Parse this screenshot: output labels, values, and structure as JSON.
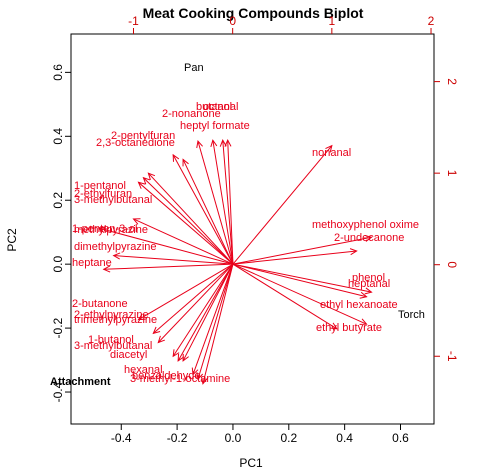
{
  "chart_data": {
    "type": "scatter",
    "title": "Meat Cooking Compounds Biplot",
    "xlabel": "PC1",
    "ylabel": "PC2",
    "xlim": [
      -0.58,
      0.72
    ],
    "ylim": [
      -0.5,
      0.72
    ],
    "top_axis_lim": [
      -1.63,
      2.03
    ],
    "right_axis_lim": [
      -1.74,
      2.52
    ],
    "x_ticks": [
      "-0.4",
      "-0.2",
      "0.0",
      "0.2",
      "0.4",
      "0.6"
    ],
    "y_ticks": [
      "-0.4",
      "-0.2",
      "0.0",
      "0.2",
      "0.4",
      "0.6"
    ],
    "top_ticks": [
      "-1",
      "0",
      "1",
      "2"
    ],
    "right_ticks": [
      "-1",
      "0",
      "1",
      "2"
    ],
    "observations": [
      {
        "label": "Pan",
        "x": -0.13,
        "y": 0.63
      },
      {
        "label": "Torch",
        "x": 0.61,
        "y": -0.21
      },
      {
        "label": "Attachment",
        "x": -0.46,
        "y": -0.43
      }
    ],
    "loadings": [
      {
        "label": "nonanal",
        "x": 1.0,
        "y": 1.3
      },
      {
        "label": "methoxyphenol oxime",
        "x": 1.4,
        "y": 0.3
      },
      {
        "label": "2-undecanone",
        "x": 1.25,
        "y": 0.15
      },
      {
        "label": "phenol",
        "x": 1.4,
        "y": -0.3
      },
      {
        "label": "heptanal",
        "x": 1.35,
        "y": -0.35
      },
      {
        "label": "ethyl hexanoate",
        "x": 1.35,
        "y": -0.65
      },
      {
        "label": "ethyl butyrate",
        "x": 1.05,
        "y": -0.7
      },
      {
        "label": "2-nonanone",
        "x": -0.35,
        "y": 1.35
      },
      {
        "label": "butanol",
        "x": -0.1,
        "y": 1.36
      },
      {
        "label": "octanal",
        "x": -0.05,
        "y": 1.36
      },
      {
        "label": "heptyl formate",
        "x": -0.2,
        "y": 1.36
      },
      {
        "label": "2-pentylfuran",
        "x": -0.5,
        "y": 1.15
      },
      {
        "label": "2,3-octanedione",
        "x": -0.6,
        "y": 1.2
      },
      {
        "label": "1-pentanol",
        "x": -0.85,
        "y": 1.0
      },
      {
        "label": "2-ethylfuran",
        "x": -0.9,
        "y": 0.95
      },
      {
        "label": "3-methylbutanal",
        "x": -0.95,
        "y": 0.9
      },
      {
        "label": "methylpyrazine",
        "x": -1.0,
        "y": 0.5
      },
      {
        "label": "1-penten-3-ol",
        "x": -1.35,
        "y": 0.4
      },
      {
        "label": "dimethylpyrazine",
        "x": -1.2,
        "y": 0.1
      },
      {
        "label": "heptane",
        "x": -1.3,
        "y": -0.05
      },
      {
        "label": "2-butanone",
        "x": -0.95,
        "y": -0.6
      },
      {
        "label": "2-ethylpyrazine",
        "x": -0.8,
        "y": -0.75
      },
      {
        "label": "trimethylpyrazine",
        "x": -0.75,
        "y": -0.85
      },
      {
        "label": "1-butanol",
        "x": -0.6,
        "y": -1.0
      },
      {
        "label": "3-methylbutanal",
        "x": -0.5,
        "y": -1.05
      },
      {
        "label": "diacetyl",
        "x": -0.55,
        "y": -1.05
      },
      {
        "label": "hexanal",
        "x": -0.4,
        "y": -1.2
      },
      {
        "label": "benzaldehyde",
        "x": -0.35,
        "y": -1.25
      },
      {
        "label": "3-methyl-1-octamine",
        "x": -0.3,
        "y": -1.3
      }
    ]
  },
  "observations_display": [
    {
      "label": "Pan"
    },
    {
      "label": "Torch"
    },
    {
      "label": "Attachment"
    }
  ],
  "loading_labels": [
    {
      "text": "nonanal"
    },
    {
      "text": "methoxyphenol oxime"
    },
    {
      "text": "2-undecanone"
    },
    {
      "text": "phenol"
    },
    {
      "text": "heptanal"
    },
    {
      "text": "ethyl hexanoate"
    },
    {
      "text": "ethyl butyrate"
    },
    {
      "text": "2-nonanone"
    },
    {
      "text": "butanol"
    },
    {
      "text": "octanal"
    },
    {
      "text": "heptyl formate"
    },
    {
      "text": "2-pentylfuran"
    },
    {
      "text": "2,3-octanedione"
    },
    {
      "text": "1-pentanol"
    },
    {
      "text": "2-ethylfuran"
    },
    {
      "text": "3-methylbutanal"
    },
    {
      "text": "methylpyrazine"
    },
    {
      "text": "1-penten-3-ol"
    },
    {
      "text": "dimethylpyrazine"
    },
    {
      "text": "heptane"
    },
    {
      "text": "2-butanone"
    },
    {
      "text": "2-ethylpyrazine"
    },
    {
      "text": "trimethylpyrazine"
    },
    {
      "text": "1-butanol"
    },
    {
      "text": "3-methylbutanal"
    },
    {
      "text": "diacetyl"
    },
    {
      "text": "hexanal"
    },
    {
      "text": "benzaldehyde"
    },
    {
      "text": "3-methyl-1-octamine"
    }
  ],
  "colors": {
    "loadings": "#e8001a",
    "axes_secondary": "#cc0000",
    "observations": "#000000"
  }
}
